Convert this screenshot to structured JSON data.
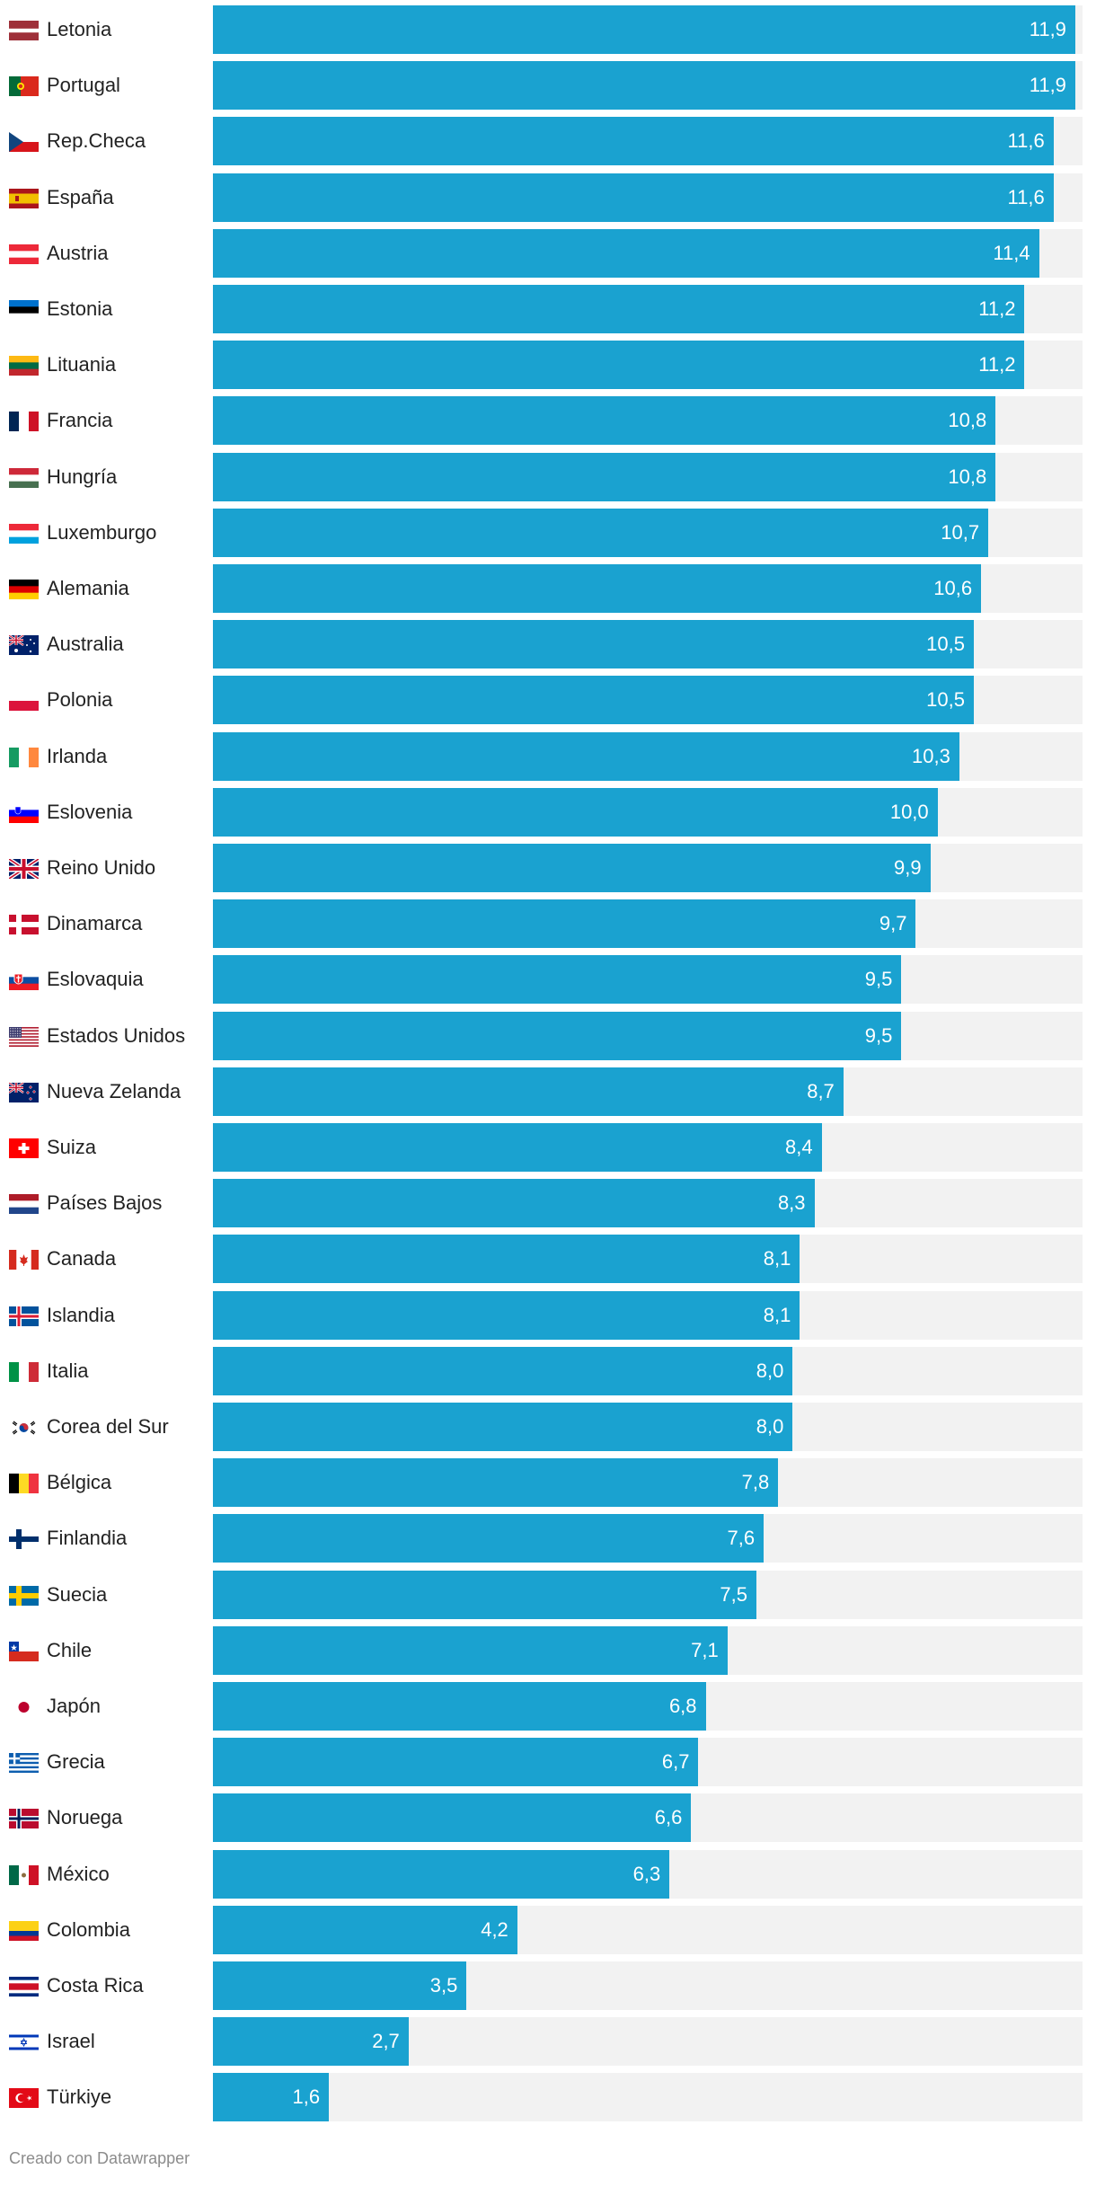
{
  "chart_data": {
    "type": "bar",
    "orientation": "horizontal",
    "title": "",
    "xlabel": "",
    "ylabel": "",
    "xlim": [
      0,
      12
    ],
    "grid": false,
    "categories": [
      "Letonia",
      "Portugal",
      "Rep.Checa",
      "España",
      "Austria",
      "Estonia",
      "Lituania",
      "Francia",
      "Hungría",
      "Luxemburgo",
      "Alemania",
      "Australia",
      "Polonia",
      "Irlanda",
      "Eslovenia",
      "Reino Unido",
      "Dinamarca",
      "Eslovaquia",
      "Estados Unidos",
      "Nueva Zelanda",
      "Suiza",
      "Países Bajos",
      "Canada",
      "Islandia",
      "Italia",
      "Corea del Sur",
      "Bélgica",
      "Finlandia",
      "Suecia",
      "Chile",
      "Japón",
      "Grecia",
      "Noruega",
      "México",
      "Colombia",
      "Costa Rica",
      "Israel",
      "Türkiye"
    ],
    "values": [
      11.9,
      11.9,
      11.6,
      11.6,
      11.4,
      11.2,
      11.2,
      10.8,
      10.8,
      10.7,
      10.6,
      10.5,
      10.5,
      10.3,
      10.0,
      9.9,
      9.7,
      9.5,
      9.5,
      8.7,
      8.4,
      8.3,
      8.1,
      8.1,
      8.0,
      8.0,
      7.8,
      7.6,
      7.5,
      7.1,
      6.8,
      6.7,
      6.6,
      6.3,
      4.2,
      3.5,
      2.7,
      1.6
    ],
    "value_labels": [
      "11,9",
      "11,9",
      "11,6",
      "11,6",
      "11,4",
      "11,2",
      "11,2",
      "10,8",
      "10,8",
      "10,7",
      "10,6",
      "10,5",
      "10,5",
      "10,3",
      "10,0",
      "9,9",
      "9,7",
      "9,5",
      "9,5",
      "8,7",
      "8,4",
      "8,3",
      "8,1",
      "8,1",
      "8,0",
      "8,0",
      "7,8",
      "7,6",
      "7,5",
      "7,1",
      "6,8",
      "6,7",
      "6,6",
      "6,3",
      "4,2",
      "3,5",
      "2,7",
      "1,6"
    ],
    "flags": [
      "lv",
      "pt",
      "cz",
      "es",
      "at",
      "ee",
      "lt",
      "fr",
      "hu",
      "lu",
      "de",
      "au",
      "pl",
      "ie",
      "si",
      "gb",
      "dk",
      "sk",
      "us",
      "nz",
      "ch",
      "nl",
      "ca",
      "is",
      "it",
      "kr",
      "be",
      "fi",
      "se",
      "cl",
      "jp",
      "gr",
      "no",
      "mx",
      "co",
      "cr",
      "il",
      "tr"
    ]
  },
  "colors": {
    "bar": "#1aa2d0",
    "track": "#f2f2f2",
    "label": "#222222",
    "value": "#ffffff",
    "footer": "#8c8c8c"
  },
  "footer": {
    "credit": "Creado con Datawrapper"
  }
}
